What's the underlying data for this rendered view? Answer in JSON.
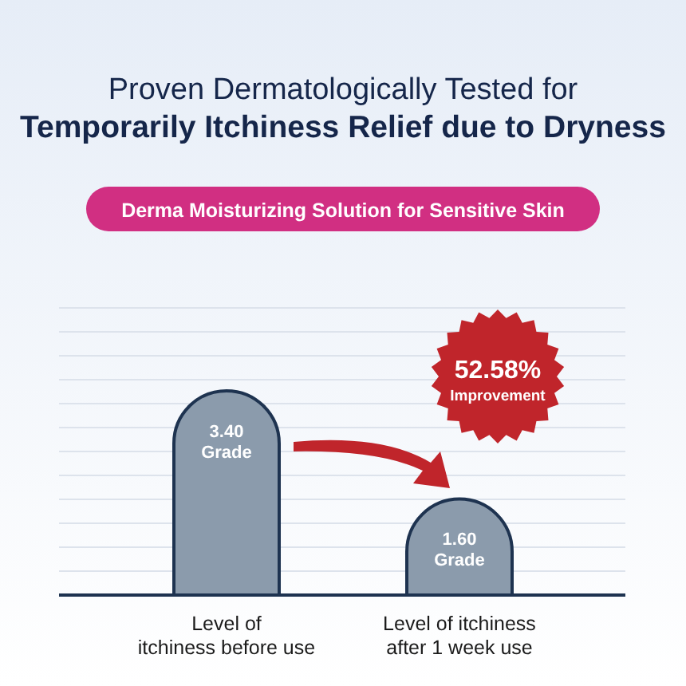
{
  "chart_data": {
    "type": "bar",
    "title": "Proven Dermatologically Tested for\nTemporarily Itchiness Relief due to Dryness",
    "subtitle": "Derma Moisturizing Solution for Sensitive Skin",
    "categories": [
      "Level of\nitchiness before use",
      "Level of itchiness\nafter 1 week use"
    ],
    "values": [
      3.4,
      1.6
    ],
    "color": "#8b9bac",
    "value_labels": [
      "3.40\nGrade",
      "1.60\nGrade"
    ],
    "grid": true,
    "annotations": [
      "52.58%\nImprovement"
    ]
  }
}
